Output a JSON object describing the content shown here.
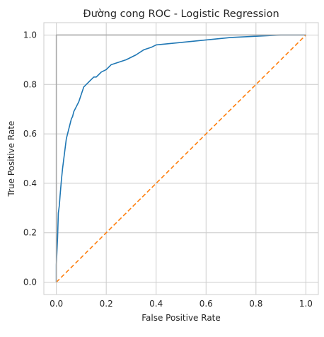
{
  "chart_data": {
    "type": "line",
    "title": "Đường cong ROC - Logistic Regression",
    "xlabel": "False Positive Rate",
    "ylabel": "True Positive Rate",
    "xlim": [
      -0.05,
      1.05
    ],
    "ylim": [
      -0.05,
      1.05
    ],
    "xticks": [
      "0.0",
      "0.2",
      "0.4",
      "0.6",
      "0.8",
      "1.0"
    ],
    "yticks": [
      "0.0",
      "0.2",
      "0.4",
      "0.6",
      "0.8",
      "1.0"
    ],
    "grid": true,
    "colors": {
      "roc": "#1f77b4",
      "diagonal": "#ff7f0e",
      "ideal": "#a9a9a9",
      "grid": "#cccccc",
      "spine": "#cccccc"
    },
    "series": [
      {
        "style": "solid",
        "x": [
          0.0,
          0.0,
          0.005,
          0.008,
          0.012,
          0.015,
          0.02,
          0.025,
          0.03,
          0.035,
          0.04,
          0.045,
          0.05,
          0.055,
          0.06,
          0.065,
          0.07,
          0.08,
          0.09,
          0.1,
          0.11,
          0.12,
          0.13,
          0.14,
          0.15,
          0.16,
          0.17,
          0.18,
          0.2,
          0.22,
          0.25,
          0.28,
          0.3,
          0.32,
          0.35,
          0.38,
          0.4,
          0.45,
          0.5,
          0.6,
          0.7,
          0.8,
          0.9,
          1.0
        ],
        "y": [
          0.0,
          0.07,
          0.18,
          0.28,
          0.31,
          0.35,
          0.41,
          0.46,
          0.5,
          0.54,
          0.58,
          0.6,
          0.62,
          0.64,
          0.66,
          0.67,
          0.69,
          0.71,
          0.73,
          0.76,
          0.79,
          0.8,
          0.81,
          0.82,
          0.83,
          0.83,
          0.84,
          0.85,
          0.86,
          0.88,
          0.89,
          0.9,
          0.91,
          0.92,
          0.94,
          0.95,
          0.96,
          0.965,
          0.97,
          0.98,
          0.99,
          0.995,
          1.0,
          1.0
        ]
      },
      {
        "style": "dashed",
        "x": [
          0.0,
          1.0
        ],
        "y": [
          0.0,
          1.0
        ]
      },
      {
        "style": "solid",
        "x": [
          0.0,
          0.0,
          1.0
        ],
        "y": [
          0.0,
          1.0,
          1.0
        ]
      }
    ]
  }
}
